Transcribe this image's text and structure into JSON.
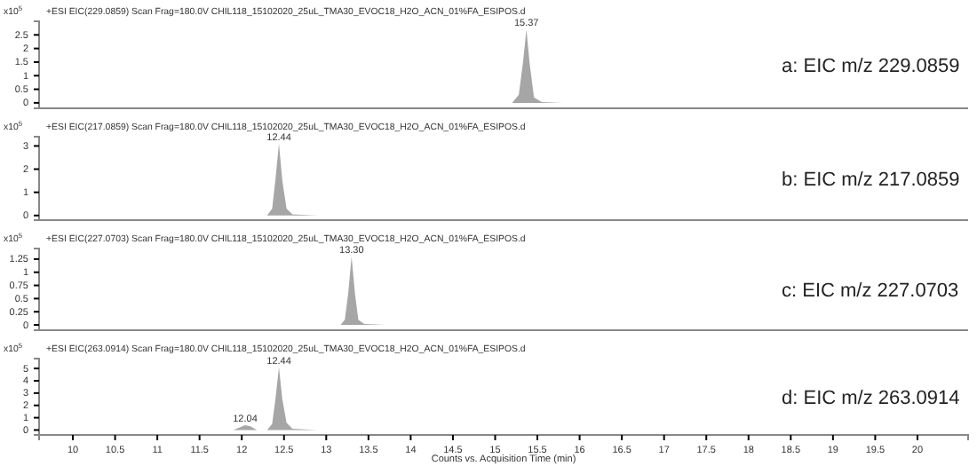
{
  "chart_data": [
    {
      "type": "area",
      "title": "+ESI EIC(229.0859) Scan Frag=180.0V CHIL118_15102020_25uL_TMA30_EVOC18_H2O_ACN_01%FA_ESIPOS.d",
      "ylabel": "x10$^{5}$",
      "xlim": [
        9.6,
        20.6
      ],
      "ylim": [
        -0.2,
        3.0
      ],
      "xticks": [
        10,
        10.5,
        11,
        11.5,
        12,
        12.5,
        13,
        13.5,
        14,
        14.5,
        15,
        15.5,
        16,
        16.5,
        17,
        17.5,
        18,
        18.5,
        19,
        19.5,
        20
      ],
      "yticks": [
        0,
        0.5,
        1,
        1.5,
        2,
        2.5
      ],
      "tick_labels": "y",
      "series": [
        {
          "color": "#a6a6a6",
          "x": [
            9.6,
            15.2,
            15.28,
            15.33,
            15.37,
            15.41,
            15.46,
            15.55,
            15.8,
            20.6
          ],
          "values": [
            0,
            0,
            0.3,
            1.5,
            2.7,
            1.4,
            0.2,
            0.03,
            0,
            0
          ]
        }
      ],
      "annotations": [
        {
          "text": "15.37",
          "x": 15.37,
          "y": 2.7
        },
        "a: EIC m/z 229.0859"
      ]
    },
    {
      "type": "area",
      "title": "+ESI EIC(217.0859) Scan Frag=180.0V CHIL118_15102020_25uL_TMA30_EVOC18_H2O_ACN_01%FA_ESIPOS.d",
      "ylabel": "x10$^{5}$",
      "xlim": [
        9.6,
        20.6
      ],
      "ylim": [
        -0.2,
        3.4
      ],
      "xticks": [
        10,
        10.5,
        11,
        11.5,
        12,
        12.5,
        13,
        13.5,
        14,
        14.5,
        15,
        15.5,
        16,
        16.5,
        17,
        17.5,
        18,
        18.5,
        19,
        19.5,
        20
      ],
      "yticks": [
        0,
        1,
        2,
        3
      ],
      "tick_labels": "y",
      "series": [
        {
          "color": "#a6a6a6",
          "x": [
            9.6,
            12.3,
            12.36,
            12.4,
            12.44,
            12.48,
            12.53,
            12.6,
            12.9,
            20.6
          ],
          "values": [
            0,
            0,
            0.3,
            1.6,
            3.1,
            1.5,
            0.3,
            0.05,
            0,
            0
          ]
        }
      ],
      "annotations": [
        {
          "text": "12.44",
          "x": 12.44,
          "y": 3.1
        },
        "b: EIC m/z 217.0859"
      ]
    },
    {
      "type": "area",
      "title": "+ESI EIC(227.0703) Scan Frag=180.0V CHIL118_15102020_25uL_TMA30_EVOC18_H2O_ACN_01%FA_ESIPOS.d",
      "ylabel": "x10$^{5}$",
      "xlim": [
        9.6,
        20.6
      ],
      "ylim": [
        -0.1,
        1.45
      ],
      "xticks": [
        10,
        10.5,
        11,
        11.5,
        12,
        12.5,
        13,
        13.5,
        14,
        14.5,
        15,
        15.5,
        16,
        16.5,
        17,
        17.5,
        18,
        18.5,
        19,
        19.5,
        20
      ],
      "yticks": [
        0,
        0.25,
        0.5,
        0.75,
        1,
        1.25
      ],
      "tick_labels": "y",
      "series": [
        {
          "color": "#a6a6a6",
          "x": [
            9.6,
            13.17,
            13.22,
            13.26,
            13.3,
            13.34,
            13.38,
            13.45,
            13.7,
            20.6
          ],
          "values": [
            0,
            0,
            0.1,
            0.6,
            1.3,
            0.6,
            0.1,
            0.02,
            0,
            0
          ]
        }
      ],
      "annotations": [
        {
          "text": "13.30",
          "x": 13.3,
          "y": 1.3
        },
        "c: EIC m/z 227.0703"
      ]
    },
    {
      "type": "area",
      "title": "+ESI EIC(263.0914) Scan Frag=180.0V CHIL118_15102020_25uL_TMA30_EVOC18_H2O_ACN_01%FA_ESIPOS.d",
      "ylabel": "x10$^{5}$",
      "xlabel": "Counts vs. Acquisition Time (min)",
      "xlim": [
        9.6,
        20.6
      ],
      "ylim": [
        -0.4,
        5.8
      ],
      "xticks": [
        10,
        10.5,
        11,
        11.5,
        12,
        12.5,
        13,
        13.5,
        14,
        14.5,
        15,
        15.5,
        16,
        16.5,
        17,
        17.5,
        18,
        18.5,
        19,
        19.5,
        20
      ],
      "yticks": [
        0,
        1,
        2,
        3,
        4,
        5
      ],
      "series": [
        {
          "color": "#a6a6a6",
          "x": [
            9.6,
            11.9,
            11.97,
            12.04,
            12.1,
            12.18,
            12.3,
            12.36,
            12.4,
            12.44,
            12.48,
            12.53,
            12.6,
            12.9,
            20.6
          ],
          "values": [
            0,
            0,
            0.2,
            0.4,
            0.3,
            0,
            0,
            0.5,
            2.6,
            5.1,
            2.5,
            0.6,
            0.1,
            0,
            0
          ]
        }
      ],
      "annotations": [
        {
          "text": "12.04",
          "x": 12.04,
          "y": 0.4
        },
        {
          "text": "12.44",
          "x": 12.44,
          "y": 5.1
        },
        "d: EIC m/z 263.0914"
      ]
    }
  ]
}
